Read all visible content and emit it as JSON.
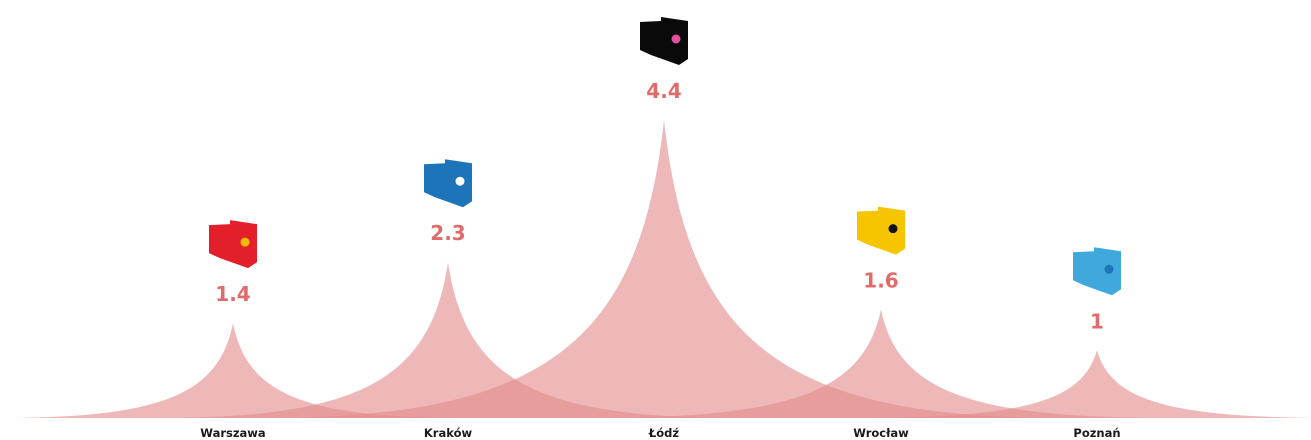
{
  "chart_data": {
    "type": "area",
    "categories": [
      "Warszawa",
      "Kraków",
      "Łódź",
      "Wrocław",
      "Poznań"
    ],
    "values": [
      1.4,
      2.3,
      4.4,
      1.6,
      1
    ],
    "value_labels": [
      "1.4",
      "2.3",
      "4.4",
      "1.6",
      "1"
    ],
    "icon_colors": [
      "#e3202a",
      "#1e74b8",
      "#0a0a0a",
      "#f7c400",
      "#3fa8dd"
    ],
    "icon_dot_colors": [
      "#f5b800",
      "#ffffff",
      "#e0529b",
      "#111111",
      "#1e74b8"
    ],
    "icons": [
      "city-shield-icon",
      "city-shield-icon",
      "city-shield-icon",
      "city-shield-icon",
      "city-shield-icon"
    ],
    "peak_color": "#e38c8c",
    "label_color": "#e06b6b",
    "ylim": [
      0,
      4.4
    ],
    "grid": false,
    "title": "",
    "xlabel": "",
    "ylabel": ""
  }
}
